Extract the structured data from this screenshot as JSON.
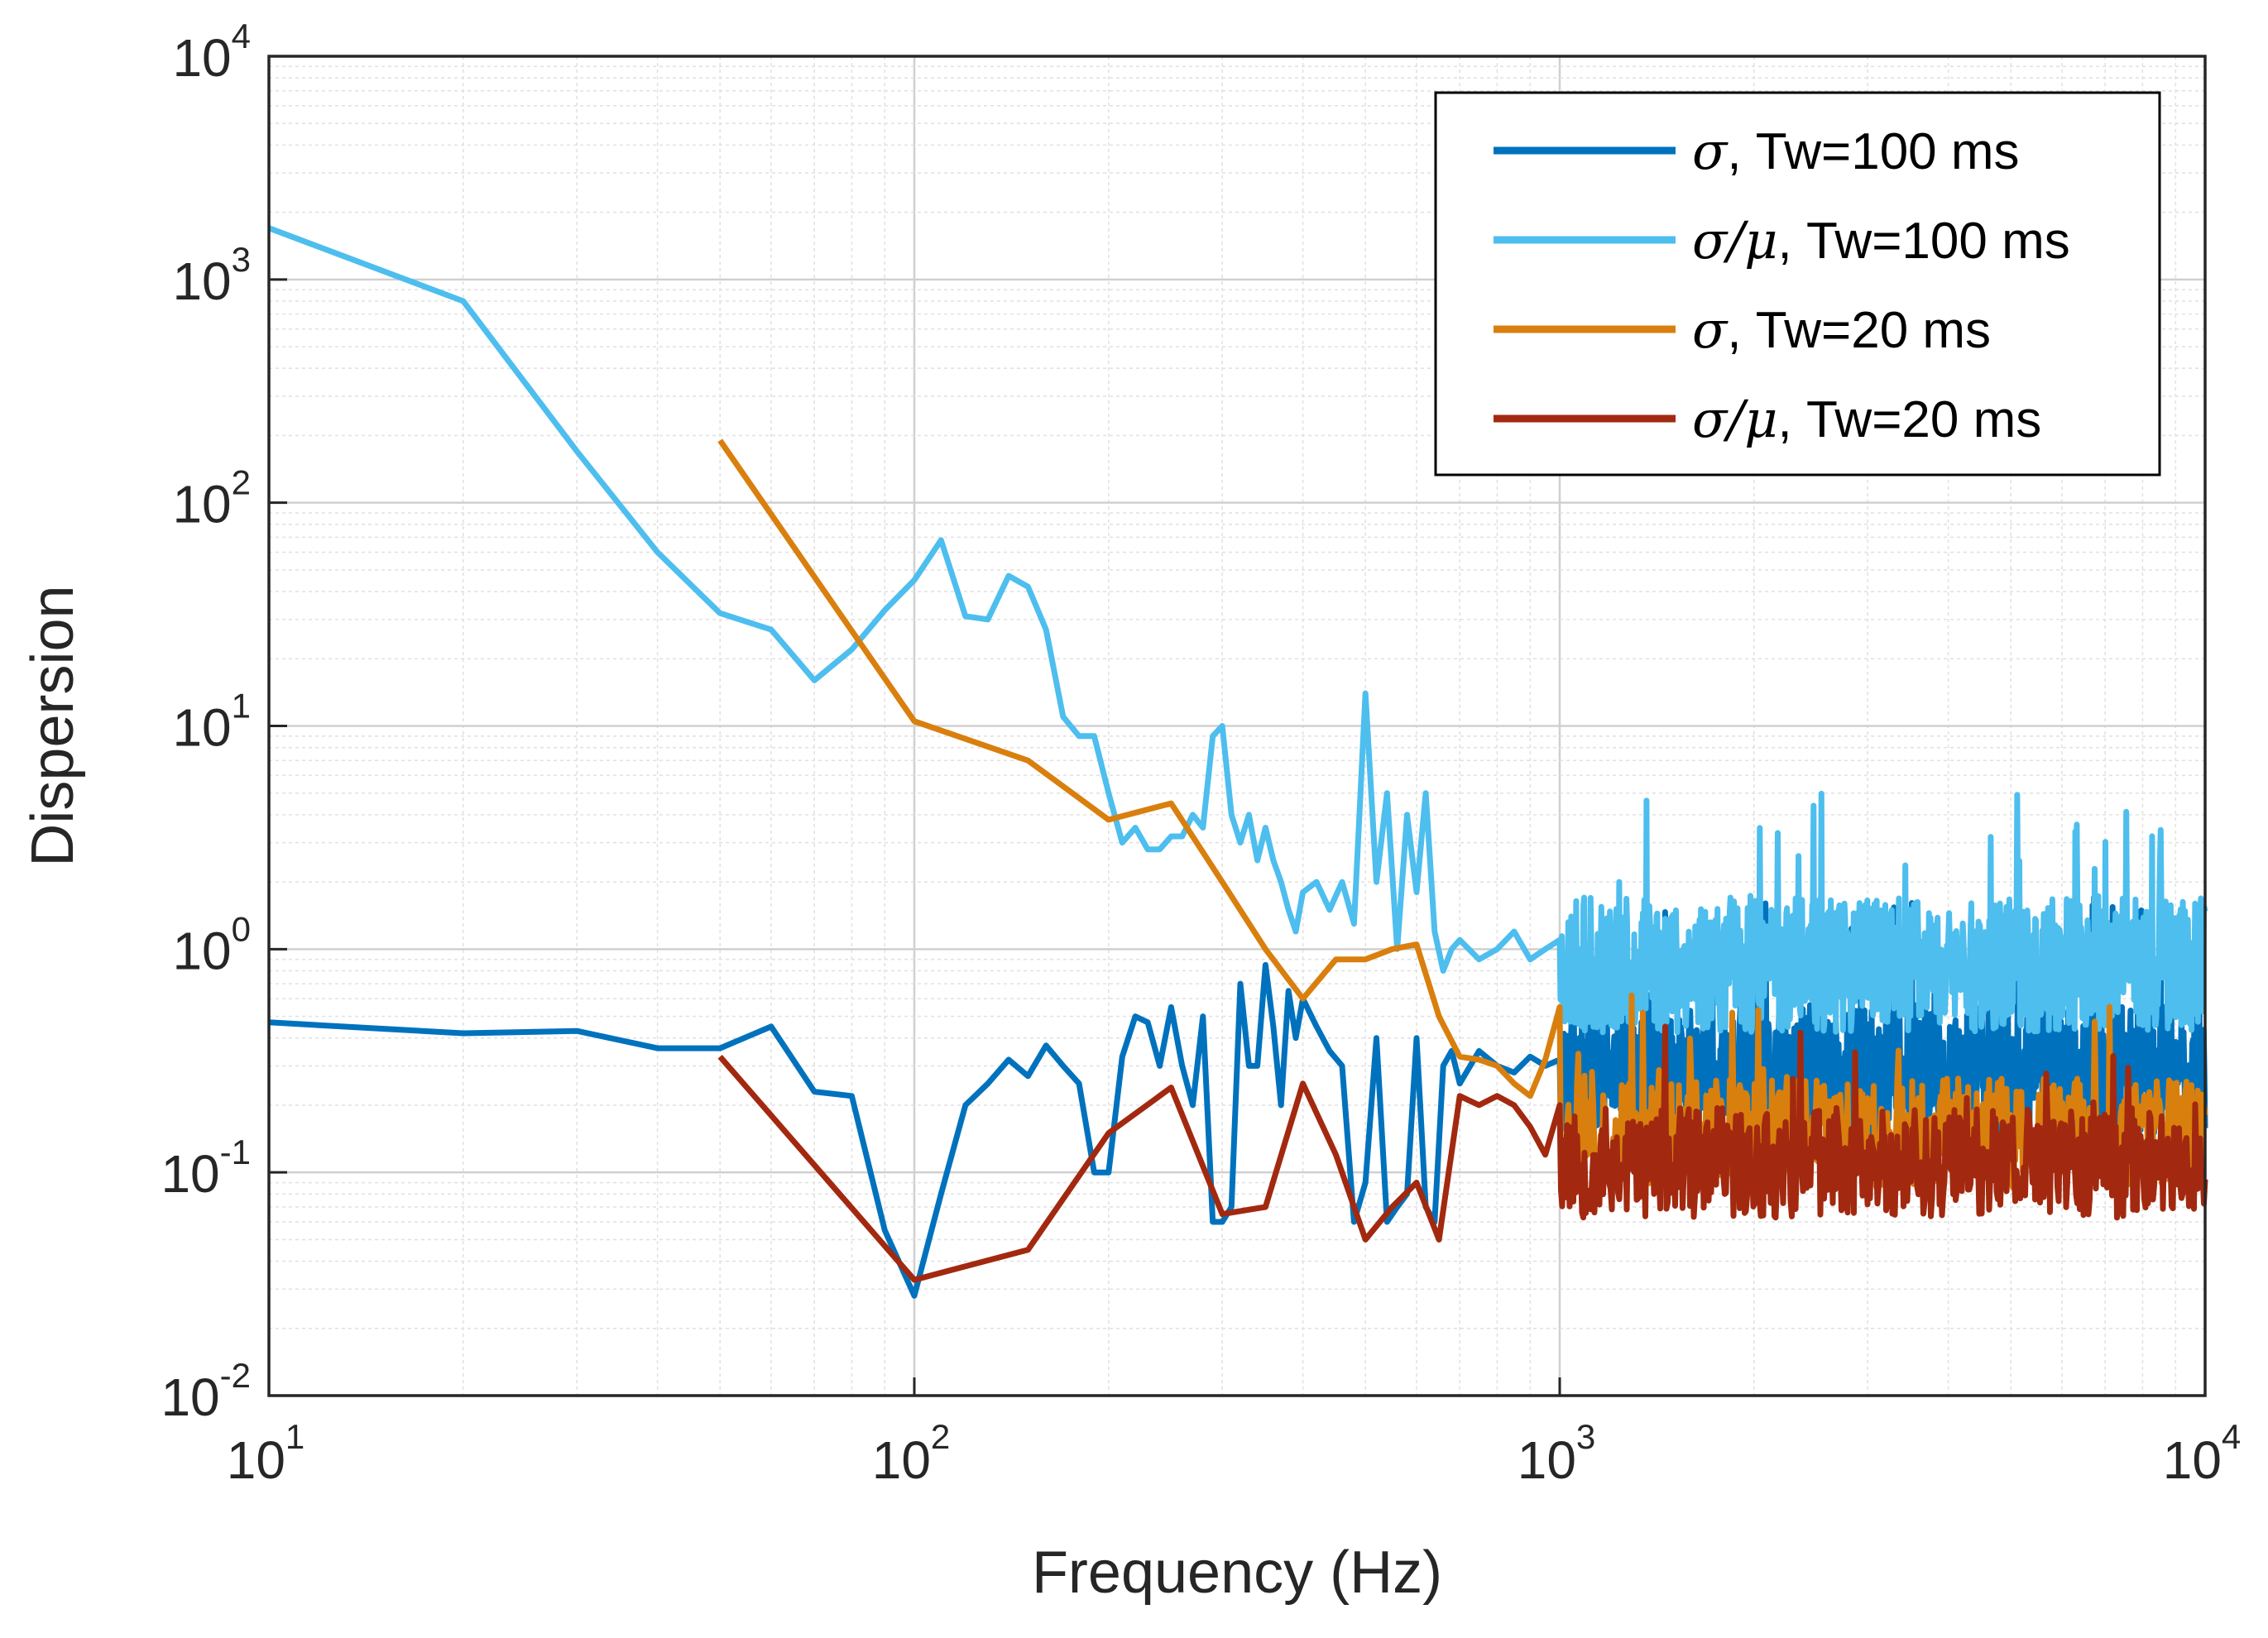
{
  "chart_data": {
    "type": "line",
    "title": "",
    "xlabel": "Frequency (Hz)",
    "ylabel": "Dispersion",
    "xscale": "log",
    "yscale": "log",
    "xlim": [
      10,
      10000
    ],
    "ylim": [
      0.01,
      10000
    ],
    "grid": true,
    "minor_grid": true,
    "legend_position": "top-right",
    "x_ticks": [
      {
        "base": "10",
        "exp": "1"
      },
      {
        "base": "10",
        "exp": "2"
      },
      {
        "base": "10",
        "exp": "3"
      },
      {
        "base": "10",
        "exp": "4"
      }
    ],
    "y_ticks": [
      {
        "base": "10",
        "exp": "-2"
      },
      {
        "base": "10",
        "exp": "-1"
      },
      {
        "base": "10",
        "exp": "0"
      },
      {
        "base": "10",
        "exp": "1"
      },
      {
        "base": "10",
        "exp": "2"
      },
      {
        "base": "10",
        "exp": "3"
      },
      {
        "base": "10",
        "exp": "4"
      }
    ],
    "series": [
      {
        "name": "σ, Tw=100 ms",
        "legend_symbol": "σ",
        "legend_rest": ", Tw=100 ms",
        "color": "#0072BD",
        "noise": {
          "from": 1000,
          "to": 10000,
          "center": 0.28,
          "spread": 0.55,
          "seed": 11,
          "samples": 900
        },
        "x": [
          10,
          20,
          30,
          40,
          50,
          60,
          70,
          80,
          90,
          100,
          110,
          120,
          130,
          140,
          150,
          160,
          170,
          180,
          190,
          200,
          210,
          220,
          230,
          240,
          250,
          260,
          270,
          280,
          290,
          300,
          310,
          320,
          330,
          340,
          350,
          360,
          370,
          380,
          390,
          400,
          420,
          440,
          460,
          480,
          500,
          520,
          540,
          560,
          580,
          600,
          620,
          640,
          660,
          680,
          700,
          750,
          800,
          850,
          900,
          950,
          1000
        ],
        "values": [
          0.47,
          0.42,
          0.43,
          0.36,
          0.36,
          0.45,
          0.23,
          0.22,
          0.055,
          0.028,
          0.08,
          0.2,
          0.25,
          0.32,
          0.27,
          0.37,
          0.3,
          0.25,
          0.1,
          0.1,
          0.33,
          0.5,
          0.47,
          0.3,
          0.55,
          0.3,
          0.2,
          0.5,
          0.06,
          0.06,
          0.07,
          0.7,
          0.3,
          0.3,
          0.85,
          0.45,
          0.2,
          0.65,
          0.4,
          0.6,
          0.45,
          0.35,
          0.3,
          0.06,
          0.09,
          0.4,
          0.06,
          0.07,
          0.08,
          0.4,
          0.07,
          0.06,
          0.3,
          0.35,
          0.25,
          0.35,
          0.3,
          0.28,
          0.33,
          0.3,
          0.32
        ]
      },
      {
        "name": "σ/μ, Tw=100 ms",
        "legend_symbol": "σ/μ",
        "legend_rest": ", Tw=100 ms",
        "color": "#4DBEEE",
        "noise": {
          "from": 1000,
          "to": 10000,
          "center": 0.85,
          "spread": 0.55,
          "seed": 23,
          "samples": 900
        },
        "x": [
          10,
          20,
          30,
          40,
          50,
          60,
          70,
          80,
          90,
          100,
          110,
          120,
          130,
          140,
          150,
          160,
          170,
          180,
          190,
          200,
          210,
          220,
          230,
          240,
          250,
          260,
          270,
          280,
          290,
          300,
          310,
          320,
          330,
          340,
          350,
          360,
          370,
          380,
          390,
          400,
          420,
          440,
          460,
          480,
          500,
          520,
          540,
          560,
          580,
          600,
          620,
          640,
          660,
          680,
          700,
          750,
          800,
          850,
          900,
          950,
          1000
        ],
        "values": [
          1700,
          800,
          170,
          60,
          32,
          27,
          16,
          22,
          33,
          45,
          68,
          31,
          30,
          47,
          42,
          27,
          11,
          9,
          9,
          5,
          3,
          3.5,
          2.8,
          2.8,
          3.2,
          3.2,
          4.0,
          3.5,
          9.0,
          10.0,
          4.0,
          3.0,
          4.0,
          2.5,
          3.5,
          2.5,
          2.0,
          1.5,
          1.2,
          1.8,
          2.0,
          1.5,
          2.0,
          1.3,
          14.0,
          2.0,
          5.0,
          1.0,
          4.0,
          1.8,
          5.0,
          1.2,
          0.8,
          1.0,
          1.1,
          0.9,
          1.0,
          1.2,
          0.9,
          1.0,
          1.1
        ]
      },
      {
        "name": "σ, Tw=20 ms",
        "legend_symbol": "σ",
        "legend_rest": ", Tw=20 ms",
        "color": "#D97F0E",
        "noise": {
          "from": 1000,
          "to": 10000,
          "center": 0.15,
          "spread": 0.45,
          "seed": 37,
          "samples": 520
        },
        "x": [
          50,
          100,
          150,
          200,
          250,
          300,
          350,
          400,
          450,
          500,
          550,
          600,
          650,
          700,
          750,
          800,
          850,
          900,
          950,
          1000
        ],
        "values": [
          190,
          10.5,
          7,
          3.8,
          4.5,
          2.0,
          1.0,
          0.6,
          0.9,
          0.9,
          1.0,
          1.05,
          0.5,
          0.33,
          0.32,
          0.3,
          0.25,
          0.22,
          0.32,
          0.55
        ]
      },
      {
        "name": "σ/μ, Tw=20 ms",
        "legend_symbol": "σ/μ",
        "legend_rest": ", Tw=20 ms",
        "color": "#A2290F",
        "noise": {
          "from": 1000,
          "to": 10000,
          "center": 0.11,
          "spread": 0.45,
          "seed": 53,
          "samples": 520
        },
        "x": [
          50,
          100,
          150,
          200,
          250,
          300,
          350,
          400,
          450,
          500,
          550,
          600,
          650,
          700,
          750,
          800,
          850,
          900,
          950,
          1000
        ],
        "values": [
          0.33,
          0.033,
          0.045,
          0.15,
          0.24,
          0.065,
          0.07,
          0.25,
          0.12,
          0.05,
          0.07,
          0.09,
          0.05,
          0.22,
          0.2,
          0.22,
          0.2,
          0.16,
          0.12,
          0.2
        ]
      }
    ]
  }
}
